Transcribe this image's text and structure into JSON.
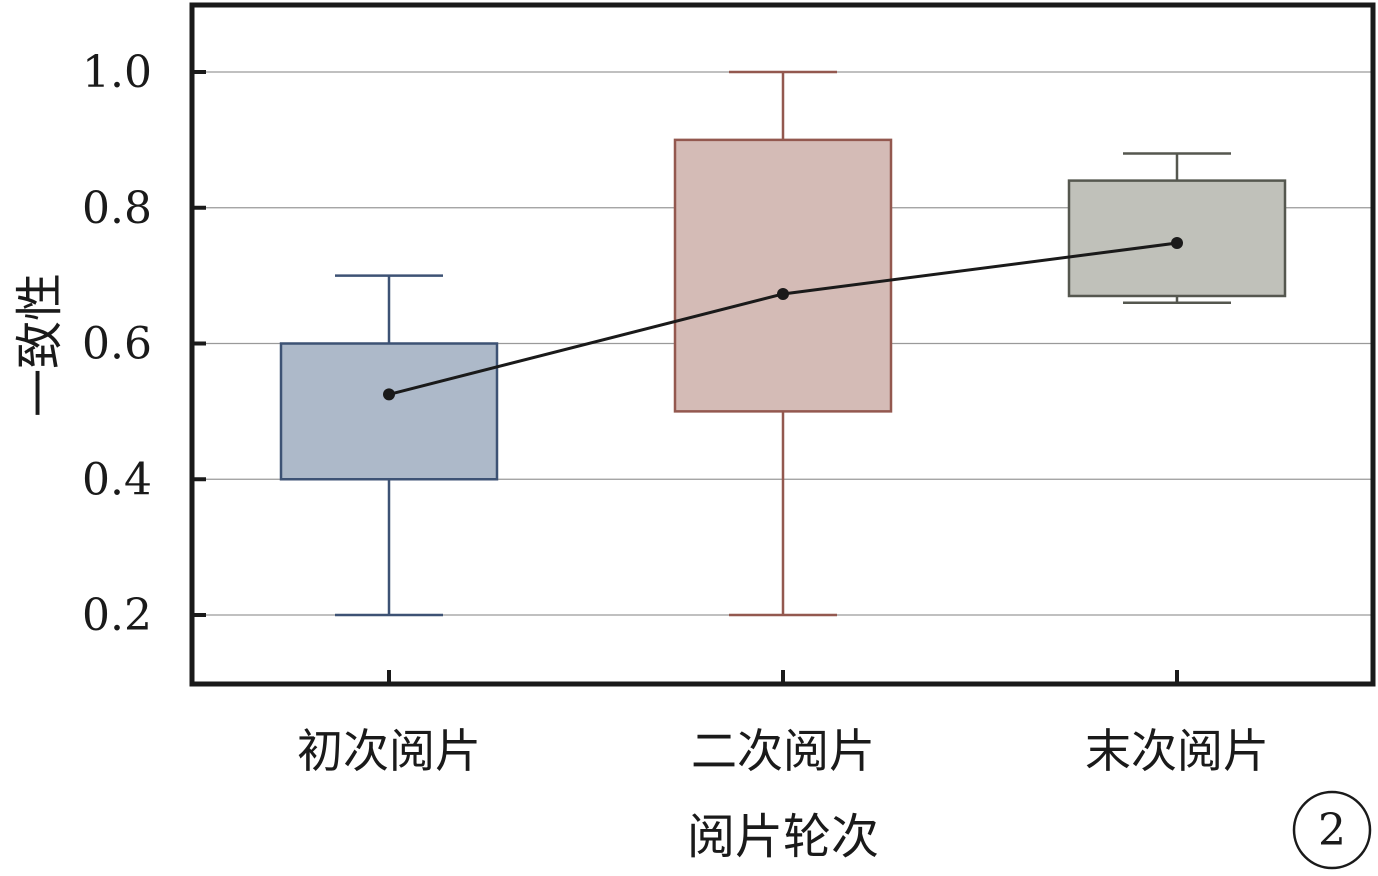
{
  "chart_data": {
    "type": "box",
    "title": "",
    "xlabel": "阅片轮次",
    "ylabel": "一致性",
    "ylim": [
      0.1,
      1.1
    ],
    "yticks": [
      "0.2",
      "0.4",
      "0.6",
      "0.8",
      "1.0"
    ],
    "ytick_values": [
      0.2,
      0.4,
      0.6,
      0.8,
      1.0
    ],
    "grid": true,
    "categories": [
      "初次阅片",
      "二次阅片",
      "末次阅片"
    ],
    "boxes": [
      {
        "category": "初次阅片",
        "min": 0.2,
        "q1": 0.4,
        "q3": 0.6,
        "max": 0.7,
        "mean": 0.525,
        "fill": "#adb9c9",
        "stroke": "#3d5274"
      },
      {
        "category": "二次阅片",
        "min": 0.2,
        "q1": 0.5,
        "q3": 0.9,
        "max": 1.0,
        "mean": 0.673,
        "fill": "#d4bbb6",
        "stroke": "#93584f"
      },
      {
        "category": "末次阅片",
        "min": 0.66,
        "q1": 0.67,
        "q3": 0.84,
        "max": 0.88,
        "mean": 0.748,
        "fill": "#c0c1ba",
        "stroke": "#55574f"
      }
    ],
    "mean_line_color": "#1a1a1a",
    "panel_label": "2"
  }
}
